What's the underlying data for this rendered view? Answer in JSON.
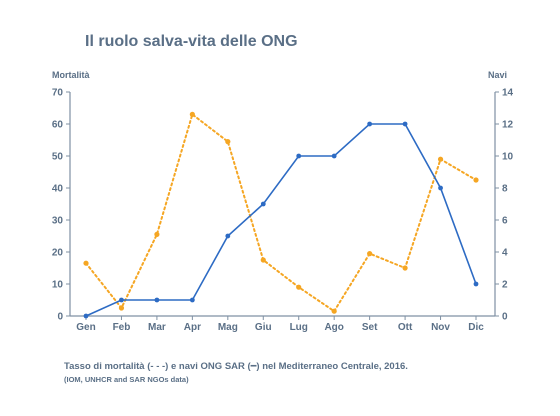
{
  "title": "Il ruolo salva-vita delle ONG",
  "caption": "Tasso di mortalità (- - -) e navi ONG SAR (━) nel Mediterraneo Centrale, 2016.",
  "source": "(IOM, UNHCR and SAR NGOs data)",
  "colors": {
    "ships": "#2d6bc4",
    "mortality": "#f5a623",
    "axis": "#7f90a3",
    "text": "#5a6f86"
  },
  "chart_data": {
    "type": "line",
    "categories": [
      "Gen",
      "Feb",
      "Mar",
      "Apr",
      "Mag",
      "Giu",
      "Lug",
      "Ago",
      "Set",
      "Ott",
      "Nov",
      "Dic"
    ],
    "ylabel_left": "Mortalità",
    "ylabel_right": "Navi",
    "ylim_left": [
      0,
      70
    ],
    "ylim_right": [
      0,
      14
    ],
    "yticks_left": [
      0,
      10,
      20,
      30,
      40,
      50,
      60,
      70
    ],
    "yticks_right": [
      0,
      2,
      4,
      6,
      8,
      10,
      12,
      14
    ],
    "grid": false,
    "series": [
      {
        "axis": "right",
        "style": "solid",
        "values": [
          0,
          1,
          1,
          1,
          5,
          7,
          10,
          10,
          12,
          12,
          8,
          2
        ]
      },
      {
        "axis": "right",
        "style": "dotted",
        "values": [
          3.3,
          0.5,
          5.1,
          12.6,
          10.9,
          3.5,
          1.8,
          0.3,
          3.9,
          3.0,
          9.8,
          8.5
        ]
      }
    ]
  }
}
